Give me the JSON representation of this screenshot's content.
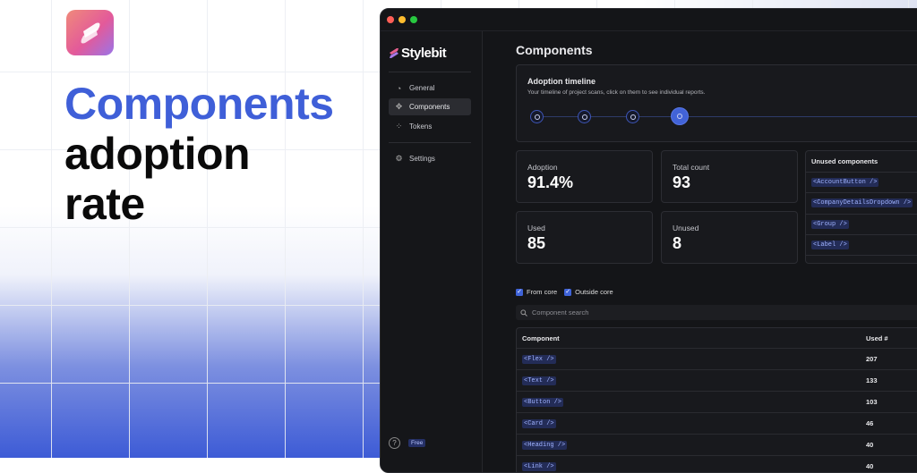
{
  "hero": {
    "line1": "Components",
    "line2": "adoption",
    "line3": "rate"
  },
  "colors": {
    "accent": "#3f5fd8",
    "window_bg": "#141518",
    "code_fg": "#9fb2ff"
  },
  "app": {
    "brand": "Stylebit",
    "sidebar": {
      "items": [
        {
          "label": "General",
          "icon": "pie-chart-icon"
        },
        {
          "label": "Components",
          "icon": "components-icon",
          "active": true
        },
        {
          "label": "Tokens",
          "icon": "tokens-icon"
        },
        {
          "label": "Settings",
          "icon": "gear-icon"
        }
      ],
      "plan_badge": "Free",
      "help": "?"
    },
    "page_title": "Components",
    "timeline": {
      "title": "Adoption timeline",
      "subtitle": "Your timeline of project scans, click on them to see individual reports.",
      "scans": 4,
      "current": 4
    },
    "stats": [
      {
        "label": "Adoption",
        "value": "91.4%"
      },
      {
        "label": "Total count",
        "value": "93"
      },
      {
        "label": "Used",
        "value": "85"
      },
      {
        "label": "Unused",
        "value": "8"
      }
    ],
    "unused": {
      "title": "Unused components",
      "items": [
        "<AccountButton />",
        "<CompanyDetailsDropdown />",
        "<Group />",
        "<Label />"
      ]
    },
    "filters": [
      {
        "label": "From core",
        "checked": true
      },
      {
        "label": "Outside core",
        "checked": true
      }
    ],
    "search": {
      "placeholder": "Component search"
    },
    "table": {
      "columns": [
        "Component",
        "Used #"
      ],
      "rows": [
        [
          "<Flex />",
          "207"
        ],
        [
          "<Text />",
          "133"
        ],
        [
          "<Button />",
          "103"
        ],
        [
          "<Card />",
          "46"
        ],
        [
          "<Heading />",
          "40"
        ],
        [
          "<Link />",
          "40"
        ]
      ]
    }
  }
}
